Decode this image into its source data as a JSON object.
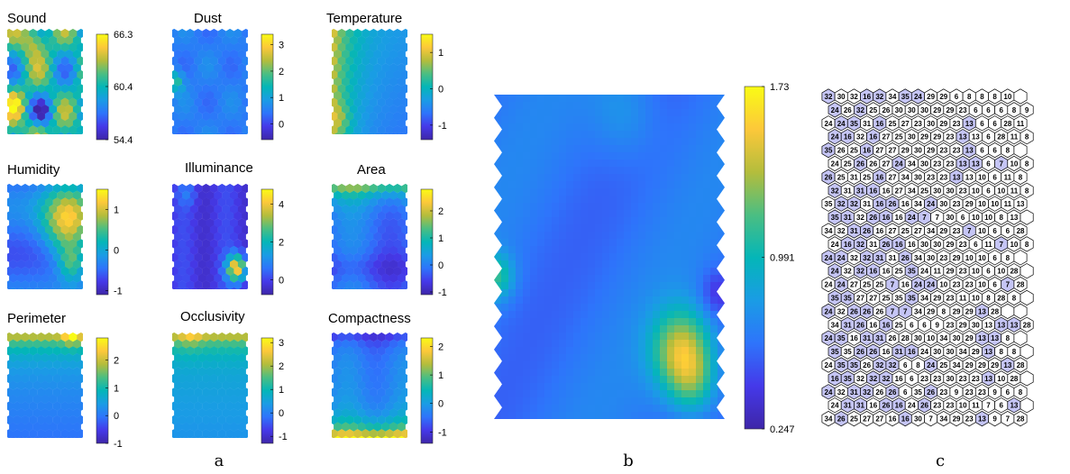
{
  "captions": [
    "a",
    "b",
    "c"
  ],
  "colormap": [
    "#3e26a8",
    "#4539e9",
    "#2e74fb",
    "#1a9ce5",
    "#04b6b8",
    "#4bbe82",
    "#b4bd3c",
    "#fcc83a",
    "#f9fb15"
  ],
  "chart_data": [
    {
      "type": "heatmap",
      "title": "Sound",
      "colorbar_ticks": [
        "66.3",
        "60.4",
        "54.4"
      ],
      "range": [
        54.4,
        66.3
      ]
    },
    {
      "type": "heatmap",
      "title": "Dust",
      "colorbar_ticks": [
        "3",
        "2",
        "1",
        "0"
      ],
      "range": [
        -0.6,
        3.4
      ]
    },
    {
      "type": "heatmap",
      "title": "Temperature",
      "colorbar_ticks": [
        "1",
        "0",
        "-1"
      ],
      "range": [
        -1.4,
        1.5
      ]
    },
    {
      "type": "heatmap",
      "title": "Humidity",
      "colorbar_ticks": [
        "1",
        "0",
        "-1"
      ],
      "range": [
        -1.1,
        1.5
      ]
    },
    {
      "type": "heatmap",
      "title": "Illuminance",
      "colorbar_ticks": [
        "4",
        "2",
        "0"
      ],
      "range": [
        -0.8,
        4.8
      ]
    },
    {
      "type": "heatmap",
      "title": "Area",
      "colorbar_ticks": [
        "2",
        "1",
        "0",
        "-1"
      ],
      "range": [
        -1.1,
        2.8
      ]
    },
    {
      "type": "heatmap",
      "title": "Perimeter",
      "colorbar_ticks": [
        "2",
        "1",
        "0",
        "-1"
      ],
      "range": [
        -1.0,
        2.8
      ]
    },
    {
      "type": "heatmap",
      "title": "Occlusivity",
      "colorbar_ticks": [
        "3",
        "2",
        "1",
        "0",
        "-1"
      ],
      "range": [
        -1.3,
        3.2
      ]
    },
    {
      "type": "heatmap",
      "title": "Compactness",
      "colorbar_ticks": [
        "2",
        "1",
        "0",
        "-1"
      ],
      "range": [
        -1.4,
        2.3
      ]
    },
    {
      "type": "heatmap",
      "title": "",
      "colorbar_ticks": [
        "1.73",
        "0.991",
        "0.247"
      ],
      "range": [
        0.247,
        1.73
      ]
    },
    {
      "type": "table",
      "title": "",
      "rows": [
        "32 30 32 16 32 34 35 24 29 29 6 8 8 8 10",
        "24 26 32 25 26 30 30 30 29 29 23 6 6 6 8 9",
        "24 24 35 31 16 25 27 23 30 29 23 13 6 6 28 11",
        "24 16 32 16 27 25 30 29 29 23 13 13 6 28 11 8",
        "35 26 25 16 27 27 29 30 29 23 23 13 6 6 8",
        "24 25 26 26 27 24 34 30 23 23 13 13 6 7 10 8",
        "26 25 31 25 16 27 34 30 23 23 13 13 10 6 11 8",
        "32 31 31 16 16 27 34 25 30 30 23 10 6 10 11 8",
        "35 32 32 31 16 26 16 34 24 30 23 29 10 10 11 13",
        "35 31 32 26 16 16 24 7 7 30 6 10 10 8 13",
        "34 32 31 26 16 27 25 27 34 29 23 7 10 6 6 28",
        "24 16 32 31 26 16 16 30 30 29 23 6 11 7 10 8",
        "24 24 32 32 31 31 26 34 30 23 29 10 10 6 8",
        "24 32 32 16 16 25 35 24 11 29 23 10 6 10 28",
        "24 24 27 25 25 7 16 24 24 10 23 23 10 6 7 28",
        "35 35 27 27 25 35 35 34 29 23 11 10 8 28 8",
        "24 32 26 26 26 7 7 34 29 8 29 29 13 28",
        "34 31 26 16 16 25 6 6 9 23 29 30 13 13 13 28",
        "24 35 16 31 31 26 28 30 10 34 30 29 13 13 8",
        "35 35 26 26 16 31 16 24 30 30 34 29 13 8 8",
        "24 35 35 26 32 32 6 8 24 25 34 29 29 29 13 28",
        "16 35 32 32 32 16 6 23 23 30 23 23 13 10 28",
        "24 32 31 32 26 26 6 35 26 23 9 23 23 9 6 8",
        "24 31 31 16 26 16 24 26 23 23 10 11 7 6 13",
        "34 26 25 27 27 16 16 30 7 34 29 23 13 9 7 28"
      ],
      "highlighted_values": [
        "16",
        "24",
        "26",
        "31",
        "32",
        "35",
        "7",
        "13"
      ]
    }
  ]
}
